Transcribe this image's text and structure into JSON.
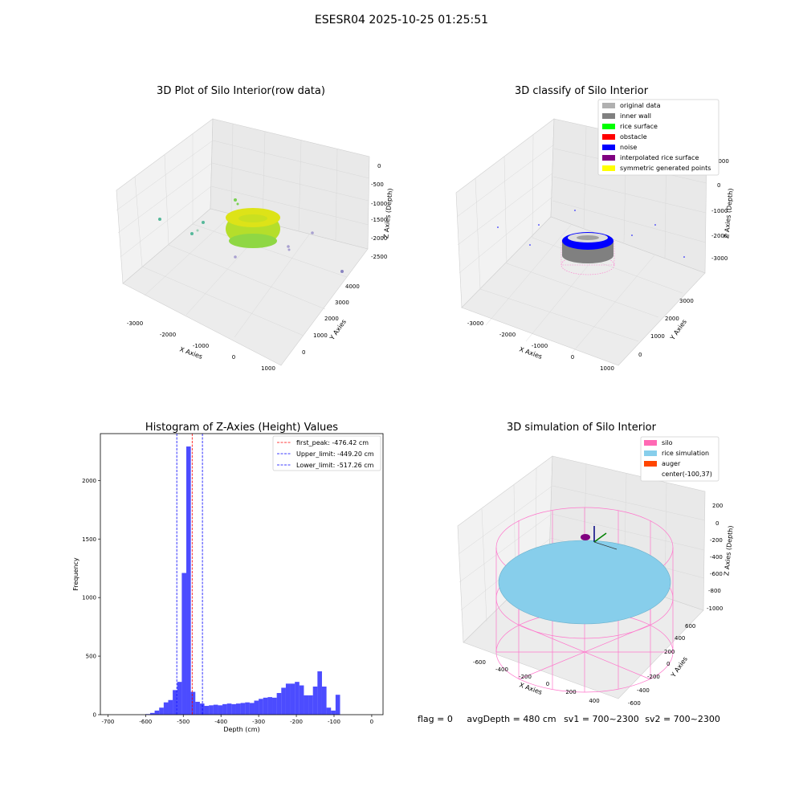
{
  "suptitle": "ESESR04 2025-10-25 01:25:51",
  "panel1": {
    "title": "3D Plot of Silo Interior(row data)",
    "xlabel": "X Axies",
    "ylabel": "Y Axies",
    "zlabel": "Z Axies (Depth)",
    "xticks": [
      "-3000",
      "-2000",
      "-1000",
      "0",
      "1000"
    ],
    "yticks": [
      "0",
      "1000",
      "2000",
      "3000",
      "4000"
    ],
    "zticks": [
      "0",
      "-500",
      "-1000",
      "-1500",
      "-2000",
      "-2500"
    ],
    "colors": {
      "point_yellow": "#d8e219",
      "point_green": "#7ad151",
      "outlier_teal": "#55b89a",
      "outlier_purple": "#a8a0d0"
    }
  },
  "panel2": {
    "title": "3D classify of Silo Interior",
    "xlabel": "X Axies",
    "ylabel": "Y Axies",
    "zlabel": "Z Axies (Depth)",
    "xticks": [
      "-3000",
      "-2000",
      "-1000",
      "0",
      "1000"
    ],
    "yticks": [
      "0",
      "1000",
      "2000",
      "3000"
    ],
    "zticks": [
      "1000",
      "0",
      "-1000",
      "-2000",
      "-3000"
    ],
    "legend": [
      {
        "label": "original data",
        "color": "#b0b0b0"
      },
      {
        "label": "inner wall",
        "color": "#808080"
      },
      {
        "label": "rice surface",
        "color": "#00ff00"
      },
      {
        "label": "obstacle",
        "color": "#ff0000"
      },
      {
        "label": "noise",
        "color": "#0000ff"
      },
      {
        "label": "interpolated rice surface",
        "color": "#800080"
      },
      {
        "label": "symmetric generated points",
        "color": "#ffff00"
      }
    ]
  },
  "panel3": {
    "title": "Histogram of Z-Axies (Height) Values",
    "legend": [
      {
        "label": "first_peak: -476.42 cm",
        "color": "#ff0000"
      },
      {
        "label": "Upper_limit: -449.20 cm",
        "color": "#0000ff"
      },
      {
        "label": "Lower_limit: -517.26 cm",
        "color": "#0000ff"
      }
    ]
  },
  "panel4": {
    "title": "3D simulation of Silo Interior",
    "xlabel": "X Axies",
    "ylabel": "Y Axies",
    "zlabel": "Z Axies (Depth)",
    "xticks": [
      "-600",
      "-400",
      "-200",
      "0",
      "200",
      "400"
    ],
    "yticks": [
      "-600",
      "-400",
      "-200",
      "0",
      "200",
      "400",
      "600"
    ],
    "zticks": [
      "200",
      "0",
      "-200",
      "-400",
      "-600",
      "-800",
      "-1000"
    ],
    "legend": [
      {
        "label": "silo",
        "color": "#ff69b4"
      },
      {
        "label": "rice simulation",
        "color": "#87ceeb"
      },
      {
        "label": "auger",
        "color": "#ff4500"
      },
      {
        "label": "center(-100,37)",
        "color": ""
      }
    ],
    "status": {
      "flag": "flag = 0",
      "avg": "avgDepth = 480 cm",
      "sv1": "sv1 = 700~2300",
      "sv2": "sv2 = 700~2300"
    }
  },
  "chart_data": [
    {
      "type": "scatter",
      "title": "3D Plot of Silo Interior(row data)",
      "xlabel": "X Axies",
      "ylabel": "Y Axies",
      "zlabel": "Z Axies (Depth)",
      "xlim": [
        -3300,
        1000
      ],
      "ylim": [
        0,
        4000
      ],
      "zlim": [
        -2800,
        0
      ]
    },
    {
      "type": "scatter",
      "title": "3D classify of Silo Interior",
      "xlabel": "X Axies",
      "ylabel": "Y Axies",
      "zlabel": "Z Axies (Depth)",
      "xlim": [
        -3300,
        1000
      ],
      "ylim": [
        0,
        3500
      ],
      "zlim": [
        -3500,
        1000
      ]
    },
    {
      "type": "bar",
      "title": "Histogram of Z-Axies (Height) Values",
      "xlabel": "Depth (cm)",
      "ylabel": "Frequency",
      "xlim": [
        -720,
        30
      ],
      "ylim": [
        0,
        2400
      ],
      "xticks": [
        -700,
        -600,
        -500,
        -400,
        -300,
        -200,
        -100,
        0
      ],
      "yticks": [
        0,
        500,
        1000,
        1500,
        2000
      ],
      "bin_width": 12,
      "bin_start": -600,
      "values": [
        5,
        15,
        35,
        60,
        105,
        125,
        210,
        280,
        1210,
        2290,
        195,
        110,
        95,
        75,
        80,
        85,
        80,
        90,
        95,
        90,
        95,
        100,
        105,
        100,
        120,
        135,
        145,
        150,
        145,
        185,
        230,
        265,
        265,
        280,
        250,
        165,
        165,
        240,
        370,
        240,
        60,
        35,
        170
      ],
      "vlines": [
        {
          "x": -476.42,
          "color": "#ff0000"
        },
        {
          "x": -449.2,
          "color": "#0000ff"
        },
        {
          "x": -517.26,
          "color": "#0000ff"
        }
      ],
      "legend_position": "upper-right"
    },
    {
      "type": "surface",
      "title": "3D simulation of Silo Interior",
      "xlabel": "X Axies",
      "ylabel": "Y Axies",
      "zlabel": "Z Axies (Depth)",
      "xlim": [
        -700,
        500
      ],
      "ylim": [
        -600,
        700
      ],
      "zlim": [
        -1000,
        300
      ]
    }
  ]
}
